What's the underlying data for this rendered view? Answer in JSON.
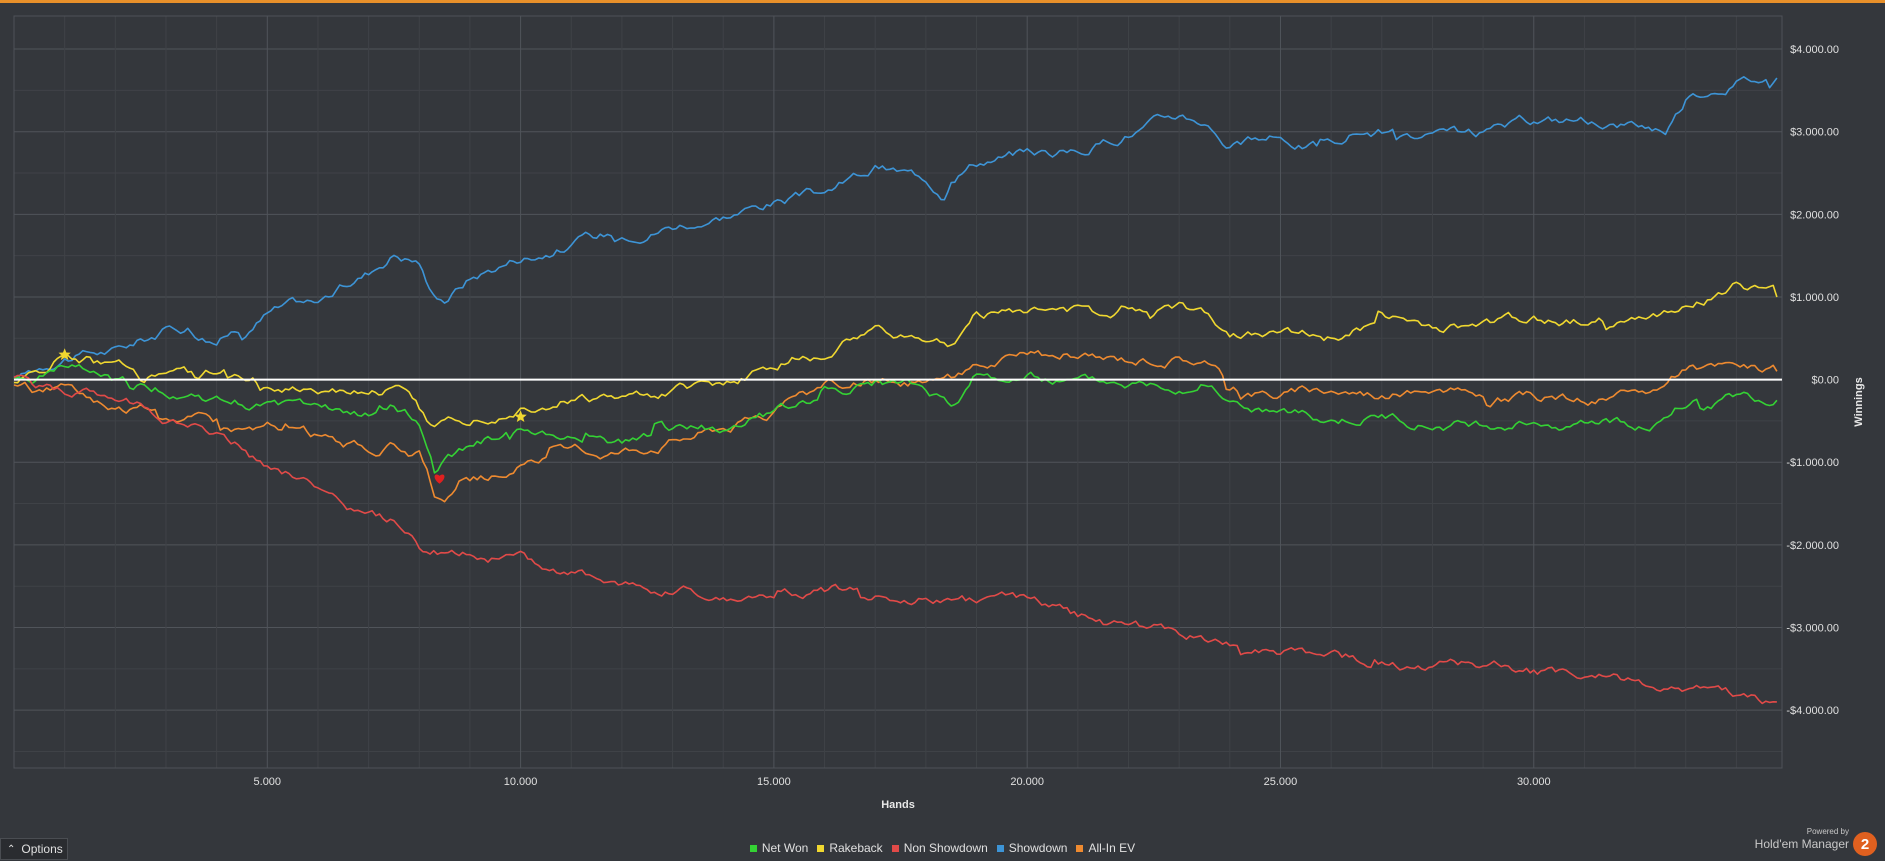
{
  "chart_data": {
    "type": "line",
    "xlabel": "Hands",
    "ylabel": "Winnings",
    "xlim": [
      0,
      34900
    ],
    "ylim": [
      -4700,
      4400
    ],
    "x_ticks": [
      5000,
      10000,
      15000,
      20000,
      25000,
      30000
    ],
    "x_tick_labels": [
      "5.000",
      "10.000",
      "15.000",
      "20.000",
      "25.000",
      "30.000"
    ],
    "y_ticks": [
      4000,
      3000,
      2000,
      1000,
      0,
      -1000,
      -2000,
      -3000,
      -4000
    ],
    "y_tick_labels": [
      "$4.000.00",
      "$3.000.00",
      "$2.000.00",
      "$1.000.00",
      "$0.00",
      "-$1.000.00",
      "-$2.000.00",
      "-$3.000.00",
      "-$4.000.00"
    ],
    "grid": true,
    "legend_position": "bottom",
    "series": [
      {
        "name": "Showdown",
        "color": "#3d94d6",
        "x": [
          0,
          1000,
          2000,
          3000,
          3500,
          4000,
          5000,
          6000,
          7000,
          7500,
          8000,
          8200,
          8500,
          9000,
          10000,
          11000,
          12000,
          13000,
          14000,
          15000,
          16000,
          17000,
          17500,
          18000,
          18300,
          18500,
          19000,
          20000,
          21000,
          22000,
          22500,
          23000,
          23500,
          24000,
          25000,
          26000,
          26500,
          27000,
          28000,
          29000,
          30000,
          31000,
          32000,
          32600,
          33000,
          34000,
          34800
        ],
        "y": [
          0,
          300,
          350,
          600,
          650,
          500,
          850,
          950,
          1300,
          1550,
          1450,
          1100,
          1000,
          1250,
          1500,
          1650,
          1800,
          1900,
          2000,
          2150,
          2250,
          2550,
          2500,
          2450,
          2300,
          2600,
          2700,
          2750,
          2750,
          3000,
          3100,
          3200,
          3150,
          2850,
          2900,
          2800,
          3000,
          3000,
          2900,
          2950,
          3100,
          3150,
          3100,
          3050,
          3400,
          3650,
          3650
        ]
      },
      {
        "name": "Rakeback",
        "color": "#f0d830",
        "x": [
          0,
          500,
          1000,
          1500,
          2000,
          3000,
          3500,
          4000,
          5000,
          6000,
          7000,
          7600,
          8000,
          8300,
          8500,
          9000,
          10000,
          11000,
          12000,
          13000,
          14000,
          15000,
          16000,
          17000,
          18000,
          18500,
          19000,
          20000,
          21000,
          21500,
          22000,
          23000,
          23500,
          24000,
          25000,
          26000,
          26500,
          27000,
          28000,
          29000,
          30000,
          31000,
          32000,
          32500,
          33000,
          34000,
          34800
        ],
        "y": [
          0,
          80,
          300,
          250,
          100,
          150,
          50,
          100,
          -50,
          -80,
          -100,
          -80,
          -400,
          -600,
          -500,
          -450,
          -300,
          -200,
          -250,
          -150,
          -50,
          150,
          400,
          600,
          500,
          400,
          800,
          850,
          800,
          750,
          900,
          900,
          800,
          600,
          550,
          500,
          600,
          700,
          600,
          600,
          700,
          700,
          800,
          750,
          900,
          1150,
          1000
        ]
      },
      {
        "name": "All-In EV",
        "color": "#ee8a30",
        "x": [
          0,
          500,
          1000,
          1500,
          2000,
          2500,
          3000,
          3500,
          4000,
          4500,
          5000,
          6000,
          7000,
          7500,
          8000,
          8300,
          8500,
          9000,
          10000,
          11000,
          12000,
          13000,
          14000,
          15000,
          16000,
          17000,
          18000,
          18500,
          19000,
          20000,
          21000,
          22000,
          23000,
          23500,
          24000,
          25000,
          26000,
          27000,
          28000,
          29000,
          30000,
          31000,
          32000,
          32500,
          33000,
          34000,
          34800
        ],
        "y": [
          -50,
          -150,
          -100,
          -200,
          -300,
          -350,
          -300,
          -400,
          -500,
          -550,
          -550,
          -700,
          -850,
          -800,
          -900,
          -1400,
          -1550,
          -1350,
          -1050,
          -950,
          -850,
          -700,
          -550,
          -400,
          -100,
          0,
          -50,
          0,
          200,
          250,
          200,
          250,
          300,
          250,
          -50,
          -150,
          -100,
          -150,
          -150,
          -200,
          -200,
          -250,
          -200,
          -100,
          100,
          150,
          100
        ]
      },
      {
        "name": "Net Won",
        "color": "#34d234",
        "x": [
          0,
          500,
          1000,
          1500,
          2000,
          3000,
          3500,
          4000,
          5000,
          6000,
          7000,
          7500,
          8000,
          8300,
          8500,
          9000,
          10000,
          11000,
          12000,
          13000,
          14000,
          15000,
          16000,
          17000,
          18000,
          18500,
          19000,
          20000,
          21000,
          22000,
          23000,
          23500,
          24000,
          25000,
          26000,
          27000,
          28000,
          29000,
          30000,
          31000,
          32000,
          32500,
          33000,
          34000,
          34800
        ],
        "y": [
          0,
          50,
          150,
          50,
          -50,
          -100,
          -150,
          -250,
          -300,
          -400,
          -450,
          -350,
          -550,
          -1150,
          -1000,
          -850,
          -600,
          -700,
          -750,
          -650,
          -600,
          -400,
          -150,
          -50,
          -150,
          -300,
          0,
          50,
          0,
          0,
          0,
          0,
          -250,
          -400,
          -500,
          -450,
          -550,
          -550,
          -500,
          -500,
          -550,
          -450,
          -250,
          -200,
          -250
        ]
      },
      {
        "name": "Non Showdown",
        "color": "#e14a48",
        "x": [
          0,
          1000,
          2000,
          3000,
          4000,
          4500,
          5000,
          6000,
          7000,
          7500,
          8000,
          9000,
          10000,
          11000,
          12000,
          13000,
          14000,
          15000,
          16000,
          17000,
          18000,
          19000,
          20000,
          21000,
          22000,
          23000,
          24000,
          25000,
          26000,
          27000,
          28000,
          29000,
          30000,
          31000,
          32000,
          33000,
          34000,
          34800
        ],
        "y": [
          0,
          -150,
          -250,
          -450,
          -650,
          -800,
          -1050,
          -1250,
          -1650,
          -1750,
          -2050,
          -2100,
          -2200,
          -2350,
          -2450,
          -2550,
          -2600,
          -2600,
          -2550,
          -2550,
          -2600,
          -2700,
          -2700,
          -2850,
          -3000,
          -3100,
          -3200,
          -3300,
          -3350,
          -3450,
          -3450,
          -3450,
          -3550,
          -3600,
          -3650,
          -3700,
          -3800,
          -3900
        ]
      }
    ],
    "annotations": [
      {
        "type": "star",
        "x": 1000,
        "y": 300,
        "color": "#f0d830"
      },
      {
        "type": "star",
        "x": 10000,
        "y": -450,
        "color": "#f0d830"
      },
      {
        "type": "heart",
        "x": 8400,
        "y": -1200,
        "color": "#e02020"
      }
    ]
  },
  "options": {
    "label": "Options"
  },
  "legend": {
    "items": [
      {
        "label": "Net Won",
        "color": "#34d234"
      },
      {
        "label": "Rakeback",
        "color": "#f0d830"
      },
      {
        "label": "Non Showdown",
        "color": "#e14a48"
      },
      {
        "label": "Showdown",
        "color": "#3d94d6"
      },
      {
        "label": "All-In EV",
        "color": "#ee8a30"
      }
    ]
  },
  "branding": {
    "powered_by": "Powered by",
    "product": "Hold'em Manager",
    "badge": "2"
  },
  "colors": {
    "background": "#34373c",
    "accent": "#e8902a",
    "zero_line": "#ffffff",
    "grid": "#4a4e54"
  }
}
